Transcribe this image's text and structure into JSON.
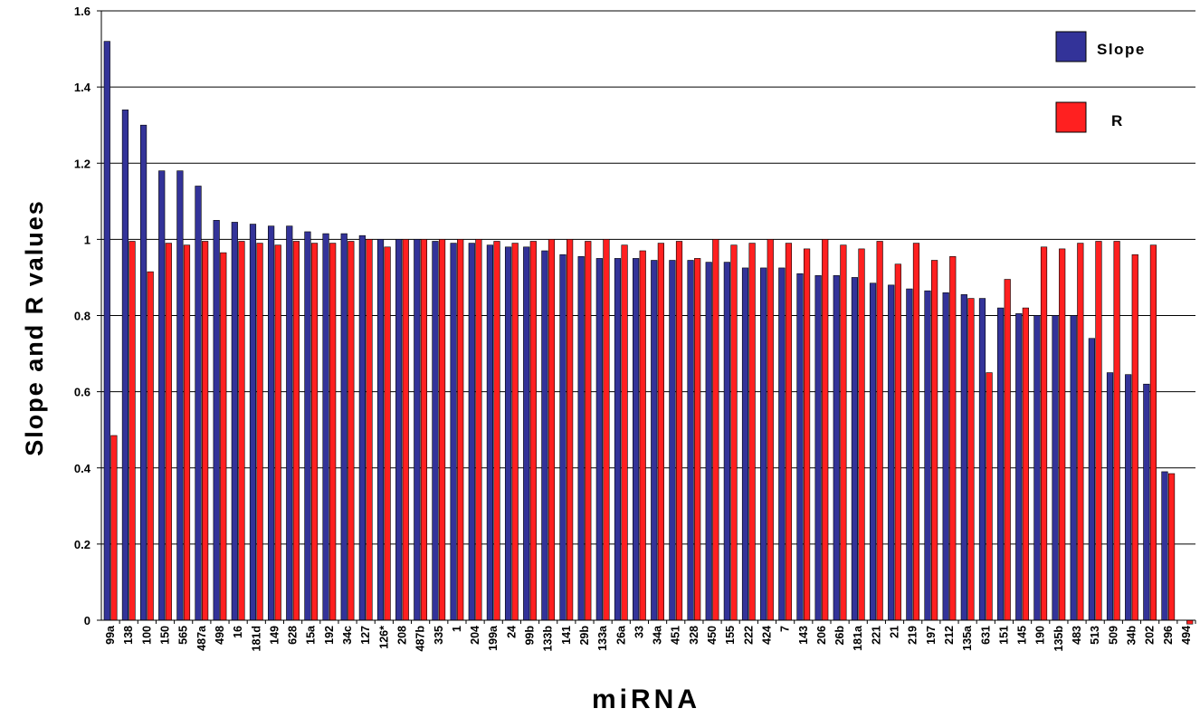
{
  "chart_data": {
    "type": "bar",
    "xlabel": "miRNA",
    "ylabel": "Slope and R values",
    "ylim": [
      0,
      1.6
    ],
    "yticks": [
      {
        "value": 0,
        "label": "0"
      },
      {
        "value": 0.2,
        "label": "0.2"
      },
      {
        "value": 0.4,
        "label": "0.4"
      },
      {
        "value": 0.6,
        "label": "0.6"
      },
      {
        "value": 0.8,
        "label": "0.8"
      },
      {
        "value": 1.0,
        "label": "1"
      },
      {
        "value": 1.2,
        "label": "1.2"
      },
      {
        "value": 1.4,
        "label": "1.4"
      },
      {
        "value": 1.6,
        "label": "1.6"
      }
    ],
    "grid": true,
    "legend_position": "top-right",
    "categories": [
      "99a",
      "138",
      "100",
      "150",
      "565",
      "487a",
      "498",
      "16",
      "181d",
      "149",
      "628",
      "15a",
      "192",
      "34c",
      "127",
      "126*",
      "208",
      "487b",
      "335",
      "1",
      "204",
      "199a",
      "24",
      "99b",
      "133b",
      "141",
      "29b",
      "133a",
      "26a",
      "33",
      "34a",
      "451",
      "328",
      "450",
      "155",
      "222",
      "424",
      "7",
      "143",
      "206",
      "26b",
      "181a",
      "221",
      "21",
      "219",
      "197",
      "212",
      "135a",
      "631",
      "151",
      "145",
      "190",
      "135b",
      "483",
      "513",
      "509",
      "34b",
      "202",
      "296",
      "494"
    ],
    "series": [
      {
        "name": "Slope",
        "color": "#333399",
        "values": [
          1.52,
          1.34,
          1.3,
          1.18,
          1.18,
          1.14,
          1.05,
          1.045,
          1.04,
          1.035,
          1.035,
          1.02,
          1.015,
          1.015,
          1.01,
          1.0,
          1.0,
          1.0,
          0.995,
          0.99,
          0.99,
          0.985,
          0.98,
          0.98,
          0.97,
          0.96,
          0.955,
          0.95,
          0.95,
          0.95,
          0.945,
          0.945,
          0.945,
          0.94,
          0.94,
          0.925,
          0.925,
          0.925,
          0.91,
          0.905,
          0.905,
          0.9,
          0.885,
          0.88,
          0.87,
          0.865,
          0.86,
          0.855,
          0.845,
          0.82,
          0.805,
          0.8,
          0.8,
          0.8,
          0.74,
          0.65,
          0.645,
          0.62,
          0.39,
          0.0
        ]
      },
      {
        "name": "R",
        "color": "#ff2020",
        "values": [
          0.485,
          0.995,
          0.915,
          0.99,
          0.985,
          0.995,
          0.965,
          0.995,
          0.99,
          0.985,
          0.995,
          0.99,
          0.99,
          0.995,
          1.0,
          0.98,
          1.0,
          1.0,
          1.0,
          1.0,
          1.0,
          0.995,
          0.99,
          0.995,
          1.0,
          1.0,
          0.995,
          1.0,
          0.985,
          0.97,
          0.99,
          0.995,
          0.95,
          1.0,
          0.985,
          0.99,
          1.0,
          0.99,
          0.975,
          1.0,
          0.985,
          0.975,
          0.995,
          0.935,
          0.99,
          0.945,
          0.955,
          0.845,
          0.65,
          0.895,
          0.82,
          0.98,
          0.975,
          0.99,
          0.995,
          0.995,
          0.96,
          0.985,
          0.385,
          -0.01
        ]
      }
    ]
  }
}
